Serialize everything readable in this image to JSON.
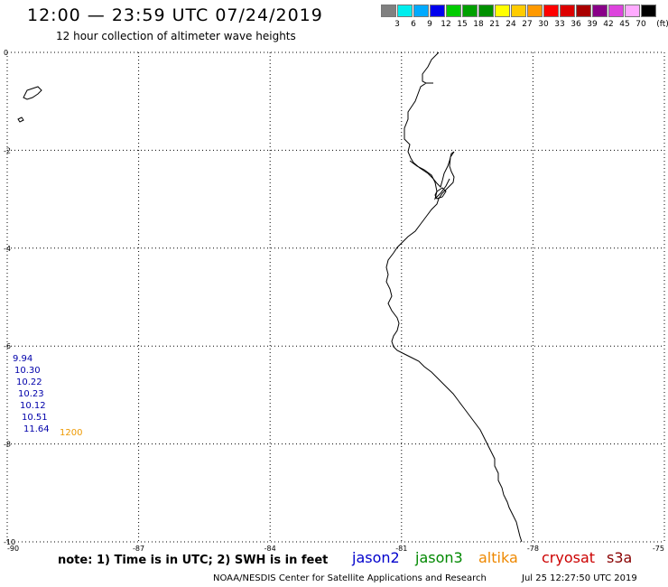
{
  "header": {
    "title": "12:00 — 23:59 UTC 07/24/2019",
    "subtitle": "12 hour collection of altimeter wave heights"
  },
  "legend": {
    "unit": "(ft)",
    "colors": [
      "#808080",
      "#00eeee",
      "#00aaff",
      "#0000ee",
      "#00cc00",
      "#00a000",
      "#009000",
      "#ffff00",
      "#ffcc00",
      "#ff9900",
      "#ff0000",
      "#dd0000",
      "#aa0000",
      "#880088",
      "#dd44dd",
      "#ffaaff",
      "#000000"
    ],
    "labels": [
      "3",
      "6",
      "9",
      "12",
      "15",
      "18",
      "21",
      "24",
      "27",
      "30",
      "33",
      "36",
      "39",
      "42",
      "45",
      "70"
    ]
  },
  "map": {
    "lon_range": [
      -90,
      -75
    ],
    "lat_range": [
      -10,
      0
    ],
    "lon_ticks": [
      "-90",
      "-87",
      "-84",
      "-81",
      "-78",
      "-75"
    ],
    "lat_ticks": [
      "0",
      "-2",
      "-4",
      "-6",
      "-8",
      "-10"
    ],
    "lon_values": [
      -90,
      -87,
      -84,
      -81,
      -78,
      -75
    ],
    "lat_values": [
      0,
      -2,
      -4,
      -6,
      -8,
      -10
    ],
    "observations": [
      {
        "value": "9.94",
        "color": "#0000aa"
      },
      {
        "value": "10.30",
        "color": "#0000aa"
      },
      {
        "value": "10.22",
        "color": "#0000aa"
      },
      {
        "value": "10.23",
        "color": "#0000aa"
      },
      {
        "value": "10.12",
        "color": "#0000aa"
      },
      {
        "value": "10.51",
        "color": "#0000aa"
      },
      {
        "value": "11.64",
        "color": "#0000aa"
      }
    ],
    "time_label": {
      "value": "1200",
      "color": "#ee9900"
    }
  },
  "notes": {
    "text": "note: 1) Time is in UTC; 2) SWH is in feet"
  },
  "satellites": [
    {
      "name": "jason2",
      "color": "#0000cc"
    },
    {
      "name": "jason3",
      "color": "#008800"
    },
    {
      "name": "altika",
      "color": "#ee8800"
    },
    {
      "name": "cryosat",
      "color": "#cc0000"
    },
    {
      "name": "s3a",
      "color": "#880000"
    }
  ],
  "footer": {
    "credit": "NOAA/NESDIS Center for Satellite Applications and Research",
    "date": "Jul 25 12:27:50 UTC 2019"
  }
}
